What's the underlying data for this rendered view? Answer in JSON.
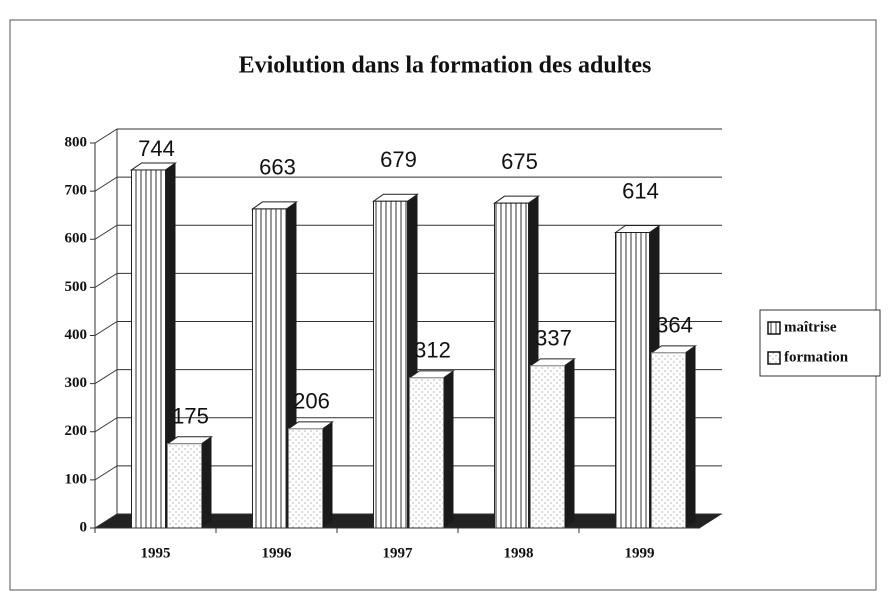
{
  "chart_data": {
    "type": "bar3d",
    "title": "Eviolution dans la formation des adultes",
    "categories": [
      "1995",
      "1996",
      "1997",
      "1998",
      "1999"
    ],
    "series": [
      {
        "name": "maîtrise",
        "color": "#222222",
        "values": [
          744,
          663,
          679,
          675,
          614
        ]
      },
      {
        "name": "formation",
        "color": "#888888",
        "values": [
          175,
          206,
          312,
          337,
          364
        ]
      }
    ],
    "ylim": [
      0,
      800
    ],
    "yticks": [
      0,
      100,
      200,
      300,
      400,
      500,
      600,
      700,
      800
    ],
    "grid": true,
    "legend": "right"
  }
}
